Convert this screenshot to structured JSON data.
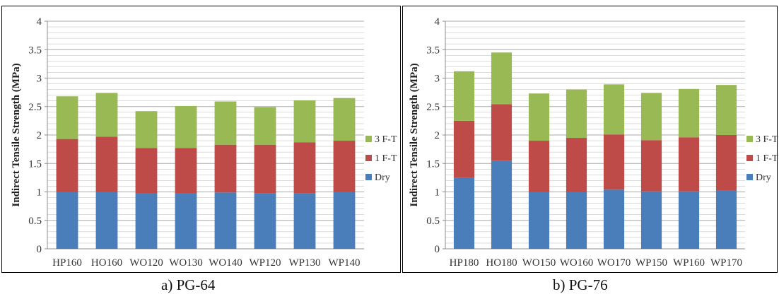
{
  "colors": {
    "Dry": "#4a7ebb",
    "1 F-T": "#be4b48",
    "3 F-T": "#98b954",
    "grid": "#c8c8c8",
    "axis": "#8c8c8c"
  },
  "captions": {
    "a": "a)   PG-64",
    "b": "b)  PG-76"
  },
  "chart_data": [
    {
      "type": "bar",
      "stacked": true,
      "title": "",
      "xlabel": "",
      "ylabel": "Indirect Tensile Strength (MPa)",
      "ylim": [
        0,
        4
      ],
      "yticks": [
        "0",
        "0.5",
        "1",
        "1.5",
        "2",
        "2.5",
        "3",
        "3.5",
        "4"
      ],
      "grid": true,
      "legend_position": "right",
      "categories": [
        "HP160",
        "HO160",
        "WO120",
        "WO130",
        "WO140",
        "WP120",
        "WP130",
        "WP140"
      ],
      "series": [
        {
          "name": "Dry",
          "values": [
            1.0,
            1.0,
            0.97,
            0.97,
            0.99,
            0.98,
            0.98,
            1.0
          ]
        },
        {
          "name": "1 F-T",
          "values": [
            0.93,
            0.97,
            0.8,
            0.8,
            0.84,
            0.85,
            0.89,
            0.9
          ]
        },
        {
          "name": "3 F-T",
          "values": [
            0.75,
            0.77,
            0.65,
            0.74,
            0.76,
            0.66,
            0.74,
            0.75
          ]
        }
      ],
      "legend": [
        "3 F-T",
        "1 F-T",
        "Dry"
      ]
    },
    {
      "type": "bar",
      "stacked": true,
      "title": "",
      "xlabel": "",
      "ylabel": "Indirect Tensile Strength (MPa)",
      "ylim": [
        0,
        4
      ],
      "yticks": [
        "0",
        "0.5",
        "1",
        "1.5",
        "2",
        "2.5",
        "3",
        "3.5",
        "4"
      ],
      "grid": true,
      "legend_position": "right",
      "categories": [
        "HP180",
        "HO180",
        "WO150",
        "WO160",
        "WO170",
        "WP150",
        "WP160",
        "WP170"
      ],
      "series": [
        {
          "name": "Dry",
          "values": [
            1.25,
            1.55,
            1.0,
            1.0,
            1.04,
            1.01,
            1.01,
            1.02
          ]
        },
        {
          "name": "1 F-T",
          "values": [
            1.0,
            0.99,
            0.9,
            0.95,
            0.97,
            0.9,
            0.95,
            0.98
          ]
        },
        {
          "name": "3 F-T",
          "values": [
            0.87,
            0.91,
            0.83,
            0.85,
            0.88,
            0.83,
            0.85,
            0.88
          ]
        }
      ],
      "legend": [
        "3 F-T",
        "1 F-T",
        "Dry"
      ]
    }
  ]
}
